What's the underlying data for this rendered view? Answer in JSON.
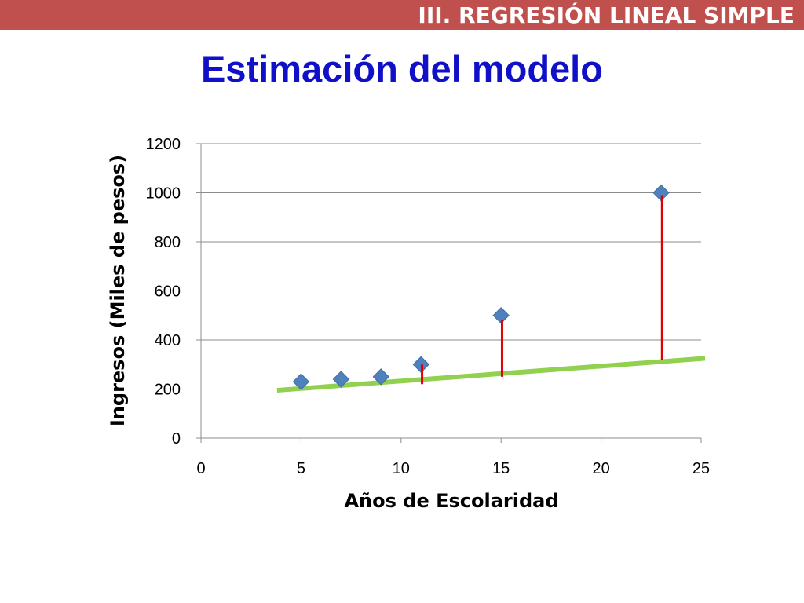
{
  "header": {
    "section_title": "III. REGRESIÓN LINEAL SIMPLE",
    "slide_title": "Estimación del modelo",
    "accent_color": "#c0504d",
    "title_color": "#1010c8"
  },
  "chart_data": {
    "type": "scatter",
    "title": "",
    "xlabel": "Años de Escolaridad",
    "ylabel": "Ingresos (Miles de pesos)",
    "xlim": [
      0,
      25
    ],
    "ylim": [
      0,
      1200
    ],
    "xticks": [
      0,
      5,
      10,
      15,
      20,
      25
    ],
    "yticks": [
      0,
      200,
      400,
      600,
      800,
      1000,
      1200
    ],
    "grid": "horizontal",
    "legend": "none",
    "series": [
      {
        "marker": "diamond",
        "color": "#4f81bd",
        "points": [
          {
            "x": 5,
            "y": 230
          },
          {
            "x": 7,
            "y": 240
          },
          {
            "x": 9,
            "y": 250
          },
          {
            "x": 11,
            "y": 300
          },
          {
            "x": 15,
            "y": 500
          },
          {
            "x": 23,
            "y": 1000
          }
        ]
      }
    ],
    "regression_line": {
      "color": "#92d050",
      "from": {
        "x": 3.8,
        "y": 195
      },
      "to": {
        "x": 25.2,
        "y": 325
      }
    },
    "residuals": {
      "color": "#e00000",
      "segments": [
        {
          "x": 11.05,
          "y_from": 300,
          "y_to": 220
        },
        {
          "x": 15.05,
          "y_from": 480,
          "y_to": 250
        },
        {
          "x": 23.05,
          "y_from": 990,
          "y_to": 320
        }
      ]
    }
  }
}
